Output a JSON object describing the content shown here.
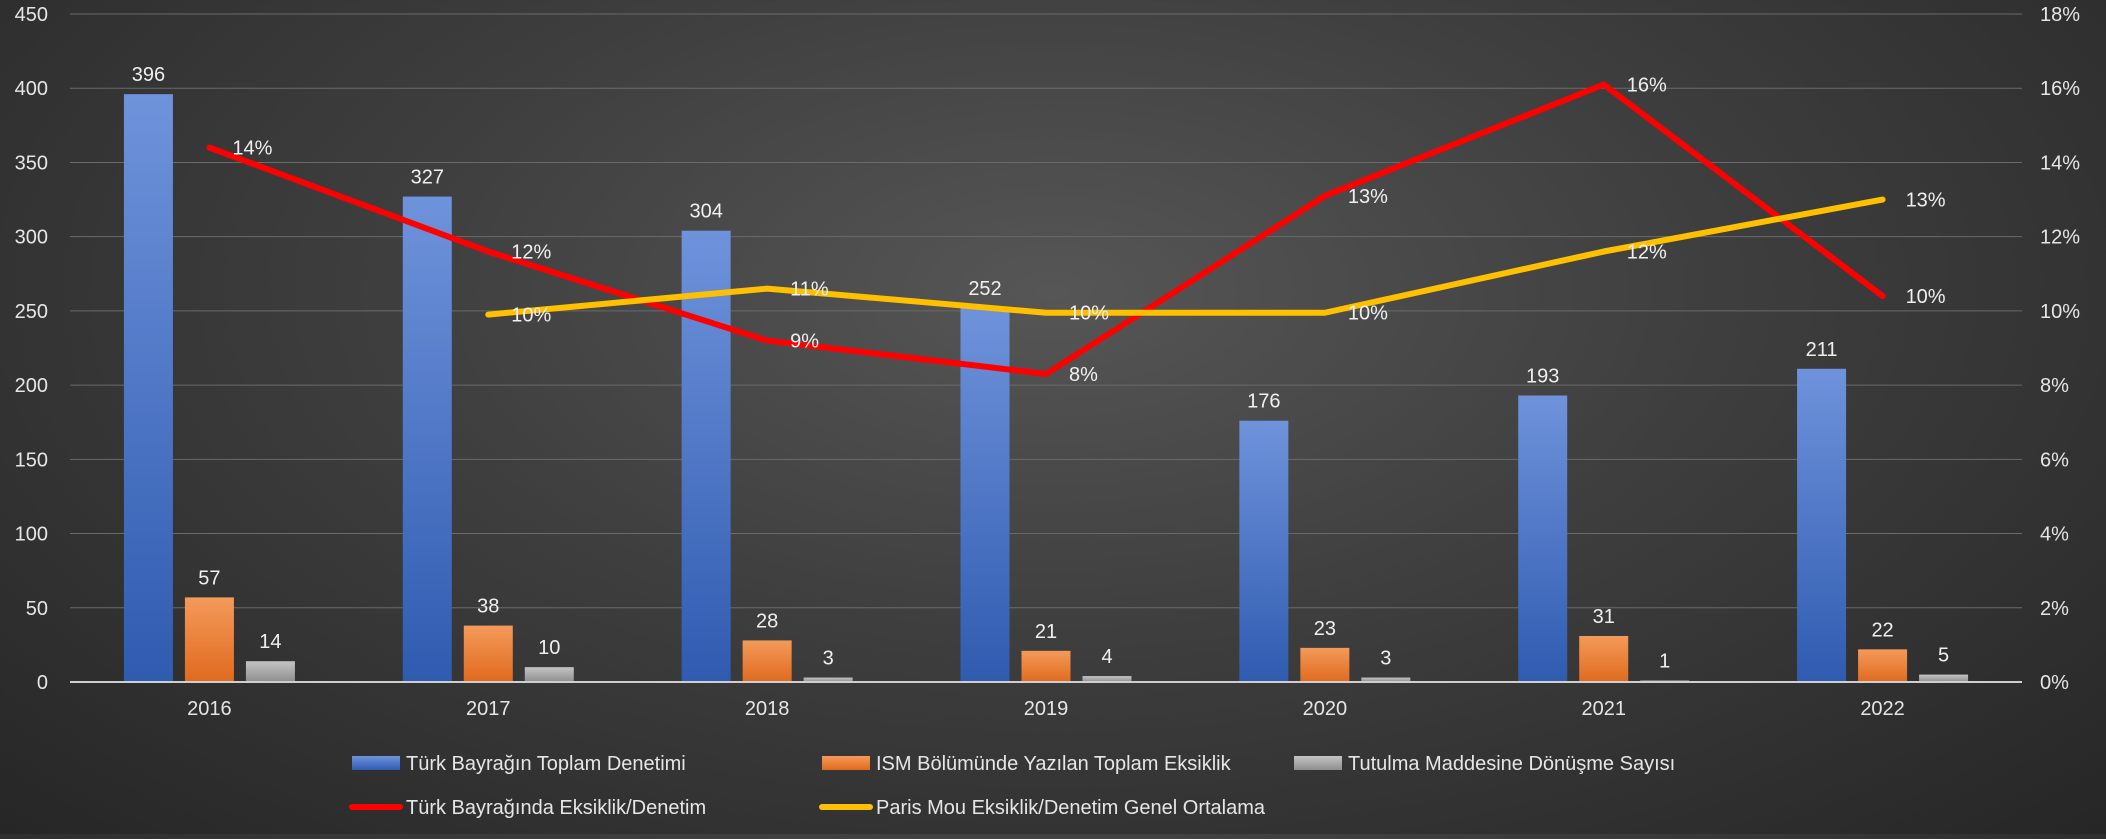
{
  "chart_data": {
    "type": "bar",
    "categories": [
      "2016",
      "2017",
      "2018",
      "2019",
      "2020",
      "2021",
      "2022"
    ],
    "y_left": {
      "ylim": [
        0,
        450
      ],
      "ticks": [
        "0",
        "50",
        "100",
        "150",
        "200",
        "250",
        "300",
        "350",
        "400",
        "450"
      ]
    },
    "y_right": {
      "ylim": [
        0,
        0.18
      ],
      "ticks": [
        "0%",
        "2%",
        "4%",
        "6%",
        "8%",
        "10%",
        "12%",
        "14%",
        "16%",
        "18%"
      ]
    },
    "grid": "horizontal",
    "legend_position": "bottom",
    "bar_series": [
      {
        "name": "Türk Bayrağın Toplam Denetimi",
        "color": "#4472c4",
        "values": [
          396,
          327,
          304,
          252,
          176,
          193,
          211
        ],
        "labels": [
          "396",
          "327",
          "304",
          "252",
          "176",
          "193",
          "211"
        ]
      },
      {
        "name": "ISM Bölümünde Yazılan Toplam Eksiklik",
        "color": "#ed7d31",
        "values": [
          57,
          38,
          28,
          21,
          23,
          31,
          22
        ],
        "labels": [
          "57",
          "38",
          "28",
          "21",
          "23",
          "31",
          "22"
        ]
      },
      {
        "name": "Tutulma Maddesine Dönüşme Sayısı",
        "color": "#a5a5a5",
        "values": [
          14,
          10,
          3,
          4,
          3,
          1,
          5
        ],
        "labels": [
          "14",
          "10",
          "3",
          "4",
          "3",
          "1",
          "5"
        ]
      }
    ],
    "line_series": [
      {
        "name": "Türk Bayrağında Eksiklik/Denetim",
        "color": "#ff0000",
        "axis": "right",
        "values": [
          0.144,
          0.116,
          0.092,
          0.083,
          0.131,
          0.161,
          0.104
        ],
        "labels": [
          "14%",
          "12%",
          "9%",
          "8%",
          "13%",
          "16%",
          "10%"
        ]
      },
      {
        "name": "Paris Mou Eksiklik/Denetim Genel Ortalama",
        "color": "#ffc000",
        "axis": "right",
        "values": [
          null,
          0.099,
          0.106,
          0.0995,
          0.0995,
          0.116,
          0.13
        ],
        "labels": [
          "",
          "10%",
          "11%",
          "10%",
          "10%",
          "12%",
          "13%"
        ]
      }
    ]
  }
}
